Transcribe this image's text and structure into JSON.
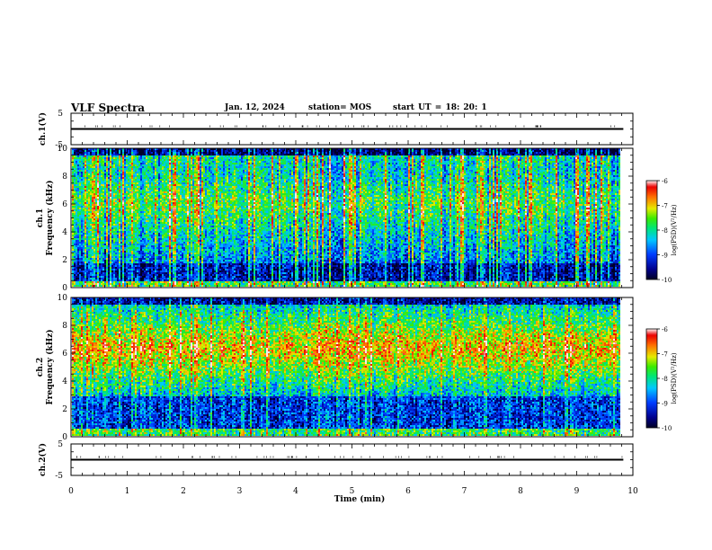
{
  "header": {
    "title": "VLF Spectra",
    "date": "Jan. 12, 2024",
    "station": "station= MOS",
    "start": "start  UT =   18: 20: 1"
  },
  "chart_data": [
    {
      "type": "line",
      "panel": "ch1-waveform",
      "ylabel": "ch.1(V)",
      "ylim": [
        -5,
        5
      ],
      "yticks": [
        "5",
        "-5"
      ],
      "x": [
        0,
        9.83
      ],
      "values": [
        0,
        0
      ],
      "xlim": [
        0,
        10
      ]
    },
    {
      "type": "heatmap",
      "panel": "ch1-spectrogram",
      "ylabel": "ch.1\nFrequency (kHz)",
      "ylim": [
        0,
        10
      ],
      "yticks": [
        "10",
        "8",
        "6",
        "4",
        "2",
        "0"
      ],
      "xlim": [
        0,
        10
      ],
      "colorbar": {
        "label": "log(PSD)(V²/Hz)",
        "ticks": [
          "-6",
          "-7",
          "-8",
          "-9",
          "-10"
        ],
        "range": [
          -10,
          -6
        ]
      }
    },
    {
      "type": "heatmap",
      "panel": "ch2-spectrogram",
      "ylabel": "ch.2\nFrequency (kHz)",
      "ylim": [
        0,
        10
      ],
      "yticks": [
        "10",
        "8",
        "6",
        "4",
        "2",
        "0"
      ],
      "xlim": [
        0,
        10
      ],
      "colorbar": {
        "label": "log(PSD)(V²/Hz)",
        "ticks": [
          "-6",
          "-7",
          "-8",
          "-9",
          "-10"
        ],
        "range": [
          -10,
          -6
        ]
      }
    },
    {
      "type": "line",
      "panel": "ch2-waveform",
      "ylabel": "ch.2(V)",
      "ylim": [
        -5,
        5
      ],
      "yticks": [
        "5",
        "-5"
      ],
      "x": [
        0,
        9.83
      ],
      "values": [
        0,
        0
      ],
      "xlim": [
        0,
        10
      ]
    }
  ],
  "xaxis": {
    "label": "Time (min)",
    "ticks": [
      "0",
      "1",
      "2",
      "3",
      "4",
      "5",
      "6",
      "7",
      "8",
      "9",
      "10"
    ]
  },
  "colors": {
    "axis": "#000000",
    "trace": "#000000"
  }
}
